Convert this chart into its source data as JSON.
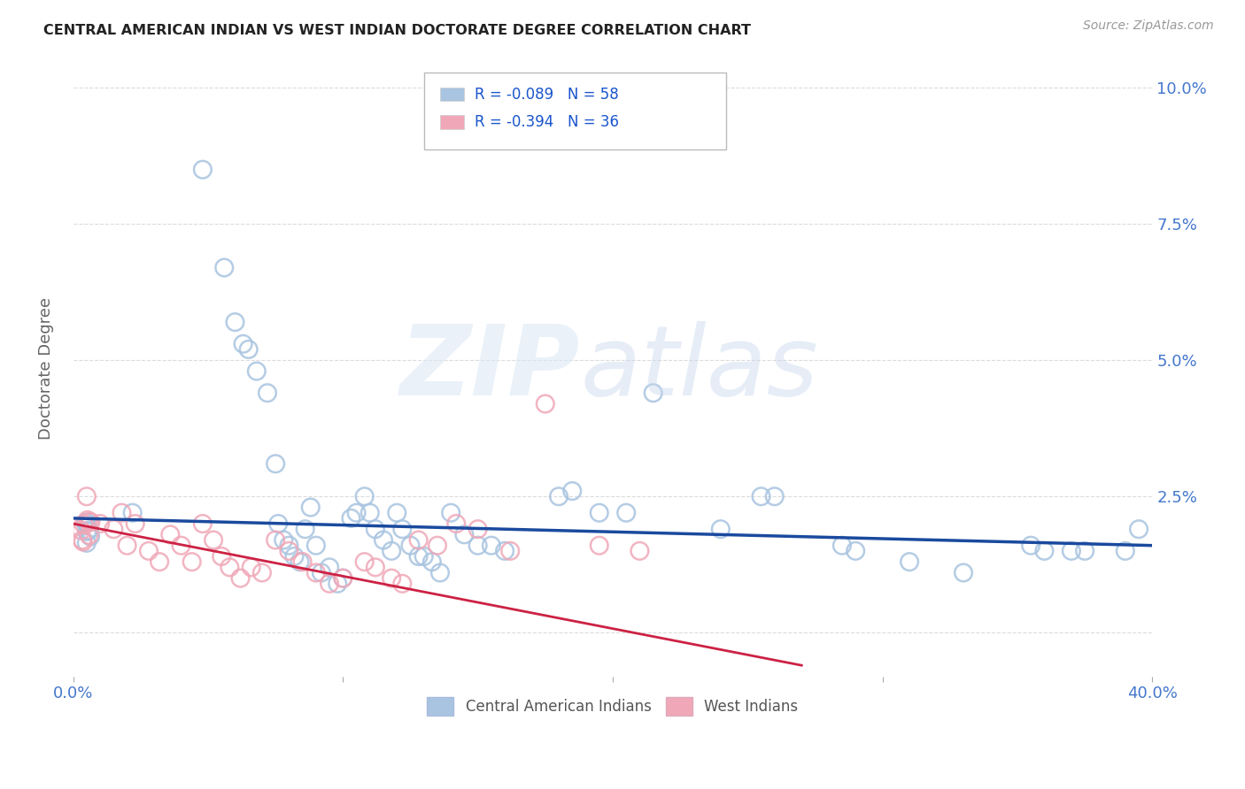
{
  "title": "CENTRAL AMERICAN INDIAN VS WEST INDIAN DOCTORATE DEGREE CORRELATION CHART",
  "source": "Source: ZipAtlas.com",
  "ylabel": "Doctorate Degree",
  "xlim": [
    0.0,
    0.4
  ],
  "ylim": [
    -0.008,
    0.105
  ],
  "yticks": [
    0.0,
    0.025,
    0.05,
    0.075,
    0.1
  ],
  "ytick_labels": [
    "",
    "2.5%",
    "5.0%",
    "7.5%",
    "10.0%"
  ],
  "xticks": [
    0.0,
    0.1,
    0.2,
    0.3,
    0.4
  ],
  "xtick_labels": [
    "0.0%",
    "",
    "",
    "",
    "40.0%"
  ],
  "series1_color": "#a8c4e0",
  "series2_color": "#f0a8b8",
  "line1_color": "#1a4a9e",
  "line2_color": "#cc2244",
  "background_color": "#ffffff",
  "grid_color": "#cccccc",
  "blue_x": [
    0.022,
    0.048,
    0.056,
    0.06,
    0.063,
    0.065,
    0.068,
    0.072,
    0.075,
    0.076,
    0.078,
    0.08,
    0.082,
    0.084,
    0.086,
    0.088,
    0.09,
    0.092,
    0.095,
    0.098,
    0.1,
    0.103,
    0.105,
    0.108,
    0.11,
    0.112,
    0.115,
    0.118,
    0.12,
    0.122,
    0.125,
    0.128,
    0.13,
    0.133,
    0.136,
    0.14,
    0.145,
    0.15,
    0.155,
    0.16,
    0.18,
    0.185,
    0.195,
    0.205,
    0.215,
    0.24,
    0.255,
    0.26,
    0.285,
    0.29,
    0.31,
    0.33,
    0.355,
    0.36,
    0.37,
    0.375,
    0.39,
    0.395
  ],
  "blue_y": [
    0.022,
    0.085,
    0.067,
    0.057,
    0.053,
    0.052,
    0.048,
    0.044,
    0.031,
    0.02,
    0.017,
    0.016,
    0.014,
    0.013,
    0.019,
    0.023,
    0.016,
    0.011,
    0.012,
    0.009,
    0.01,
    0.021,
    0.022,
    0.025,
    0.022,
    0.019,
    0.017,
    0.015,
    0.022,
    0.019,
    0.016,
    0.014,
    0.014,
    0.013,
    0.011,
    0.022,
    0.018,
    0.016,
    0.016,
    0.015,
    0.025,
    0.026,
    0.022,
    0.022,
    0.044,
    0.019,
    0.025,
    0.025,
    0.016,
    0.015,
    0.013,
    0.011,
    0.016,
    0.015,
    0.015,
    0.015,
    0.015,
    0.019
  ],
  "pink_x": [
    0.005,
    0.01,
    0.015,
    0.018,
    0.02,
    0.023,
    0.028,
    0.032,
    0.036,
    0.04,
    0.044,
    0.048,
    0.052,
    0.055,
    0.058,
    0.062,
    0.066,
    0.07,
    0.075,
    0.08,
    0.085,
    0.09,
    0.095,
    0.1,
    0.108,
    0.112,
    0.118,
    0.122,
    0.128,
    0.135,
    0.142,
    0.15,
    0.162,
    0.175,
    0.195,
    0.21
  ],
  "pink_y": [
    0.025,
    0.02,
    0.019,
    0.022,
    0.016,
    0.02,
    0.015,
    0.013,
    0.018,
    0.016,
    0.013,
    0.02,
    0.017,
    0.014,
    0.012,
    0.01,
    0.012,
    0.011,
    0.017,
    0.015,
    0.013,
    0.011,
    0.009,
    0.01,
    0.013,
    0.012,
    0.01,
    0.009,
    0.017,
    0.016,
    0.02,
    0.019,
    0.015,
    0.042,
    0.016,
    0.015
  ],
  "line1_x0": 0.0,
  "line1_y0": 0.021,
  "line1_x1": 0.4,
  "line1_y1": 0.016,
  "line2_x0": 0.0,
  "line2_y0": 0.02,
  "line2_x1": 0.27,
  "line2_y1": -0.006
}
